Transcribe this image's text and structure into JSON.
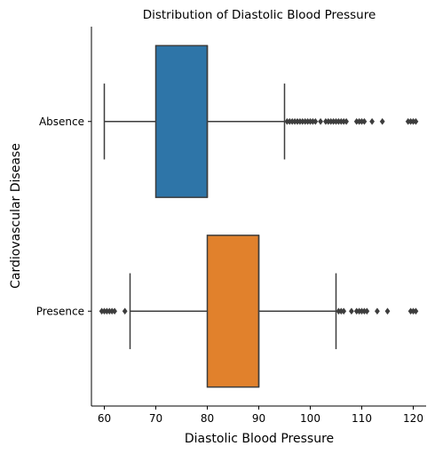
{
  "chart_data": {
    "type": "boxplot",
    "orientation": "horizontal",
    "title": "Distribution of Diastolic Blood Pressure",
    "xlabel": "Diastolic Blood Pressure",
    "ylabel": "Cardiovascular Disease",
    "xlim": [
      57.5,
      122.5
    ],
    "xticks": [
      60,
      70,
      80,
      90,
      100,
      110,
      120
    ],
    "categories": [
      "Absence",
      "Presence"
    ],
    "series": [
      {
        "category": "Absence",
        "color": "#2e75a8",
        "whisker_low": 60,
        "q1": 70,
        "median": 80,
        "q3": 80,
        "whisker_high": 95,
        "outliers": [
          95.5,
          96,
          96.5,
          97,
          97.5,
          98,
          98.5,
          99,
          99.5,
          100,
          100.5,
          101,
          102,
          103,
          103.5,
          104,
          104.5,
          105,
          105.5,
          106,
          106.5,
          107,
          109,
          109.5,
          110,
          110.5,
          112,
          114,
          119,
          119.5,
          120,
          120.5
        ]
      },
      {
        "category": "Presence",
        "color": "#e1812c",
        "whisker_low": 65,
        "q1": 80,
        "median": 90,
        "q3": 90,
        "whisker_high": 105,
        "outliers": [
          59.5,
          60,
          60.5,
          61,
          61.5,
          62,
          64,
          105.5,
          106,
          106.5,
          108,
          109,
          109.5,
          110,
          110.5,
          111,
          113,
          115,
          119.5,
          120,
          120.5
        ]
      }
    ],
    "grid": false,
    "legend": "none"
  }
}
